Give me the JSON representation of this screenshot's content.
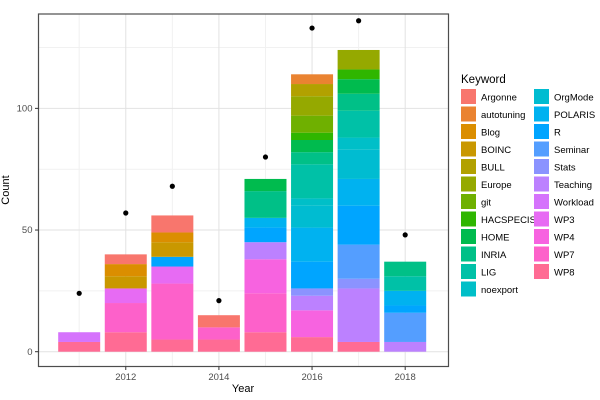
{
  "chart_data": {
    "type": "bar",
    "stacked": true,
    "title": "",
    "xlabel": "Year",
    "ylabel": "Count",
    "legend_title": "Keyword",
    "legend_position": "right",
    "grid": true,
    "background": "#FFFFFF",
    "panel_border_color": "#4D4D4D",
    "major_grid_color": "#E2E2E2",
    "minor_grid_color": "#F1F1F1",
    "tick_label_color": "#4D4D4D",
    "point_color": "#000000",
    "x_major_ticks": [
      "2012",
      "2014",
      "2016",
      "2018"
    ],
    "x_minor_years": [
      2011,
      2013,
      2015,
      2017
    ],
    "y_major_ticks": [
      0,
      50,
      100
    ],
    "y_minor_ticks": [
      25,
      75,
      125
    ],
    "ylim": [
      0,
      139
    ],
    "keywords": [
      {
        "name": "Argonne",
        "color": "#F8766D"
      },
      {
        "name": "autotuning",
        "color": "#EA8331"
      },
      {
        "name": "Blog",
        "color": "#DB8E00"
      },
      {
        "name": "BOINC",
        "color": "#C99800"
      },
      {
        "name": "BULL",
        "color": "#B2A100"
      },
      {
        "name": "Europe",
        "color": "#95A900"
      },
      {
        "name": "git",
        "color": "#6FB000"
      },
      {
        "name": "HACSPECIS",
        "color": "#2FB600"
      },
      {
        "name": "HOME",
        "color": "#00BB4E"
      },
      {
        "name": "INRIA",
        "color": "#00C087"
      },
      {
        "name": "LIG",
        "color": "#00C1A7"
      },
      {
        "name": "noexport",
        "color": "#00BFC8"
      },
      {
        "name": "OrgMode",
        "color": "#00BCD1"
      },
      {
        "name": "POLARIS",
        "color": "#00B2F0"
      },
      {
        "name": "R",
        "color": "#00A5FF"
      },
      {
        "name": "Seminar",
        "color": "#549EFF"
      },
      {
        "name": "Stats",
        "color": "#8B93FF"
      },
      {
        "name": "Teaching",
        "color": "#BC81FF"
      },
      {
        "name": "Workload",
        "color": "#D573FC"
      },
      {
        "name": "WP3",
        "color": "#E76BF3"
      },
      {
        "name": "WP4",
        "color": "#F763E0"
      },
      {
        "name": "WP7",
        "color": "#FD61CA"
      },
      {
        "name": "WP8",
        "color": "#FF6B94"
      }
    ],
    "bars": [
      {
        "year": "2011",
        "total": 8,
        "segments": [
          {
            "keyword": "WP8",
            "value": 4
          },
          {
            "keyword": "Workload",
            "value": 4
          }
        ]
      },
      {
        "year": "2012",
        "total": 40,
        "segments": [
          {
            "keyword": "WP8",
            "value": 8
          },
          {
            "keyword": "WP7",
            "value": 12
          },
          {
            "keyword": "WP3",
            "value": 6
          },
          {
            "keyword": "BOINC",
            "value": 5
          },
          {
            "keyword": "Blog",
            "value": 5
          },
          {
            "keyword": "Argonne",
            "value": 4
          }
        ]
      },
      {
        "year": "2013",
        "total": 56,
        "segments": [
          {
            "keyword": "WP8",
            "value": 5
          },
          {
            "keyword": "WP7",
            "value": 23
          },
          {
            "keyword": "WP3",
            "value": 7
          },
          {
            "keyword": "R",
            "value": 4
          },
          {
            "keyword": "BOINC",
            "value": 6
          },
          {
            "keyword": "Blog",
            "value": 4
          },
          {
            "keyword": "Argonne",
            "value": 7
          }
        ]
      },
      {
        "year": "2014",
        "total": 15,
        "segments": [
          {
            "keyword": "WP8",
            "value": 5
          },
          {
            "keyword": "WP7",
            "value": 5
          },
          {
            "keyword": "Argonne",
            "value": 5
          }
        ]
      },
      {
        "year": "2015",
        "total": 71,
        "segments": [
          {
            "keyword": "WP8",
            "value": 8
          },
          {
            "keyword": "WP7",
            "value": 16
          },
          {
            "keyword": "WP4",
            "value": 14
          },
          {
            "keyword": "Teaching",
            "value": 7
          },
          {
            "keyword": "R",
            "value": 6
          },
          {
            "keyword": "POLARIS",
            "value": 4
          },
          {
            "keyword": "INRIA",
            "value": 11
          },
          {
            "keyword": "HOME",
            "value": 5
          }
        ]
      },
      {
        "year": "2016",
        "total": 114,
        "segments": [
          {
            "keyword": "WP8",
            "value": 6
          },
          {
            "keyword": "WP4",
            "value": 11
          },
          {
            "keyword": "Teaching",
            "value": 6
          },
          {
            "keyword": "Stats",
            "value": 3
          },
          {
            "keyword": "R",
            "value": 11
          },
          {
            "keyword": "POLARIS",
            "value": 14
          },
          {
            "keyword": "OrgMode",
            "value": 9
          },
          {
            "keyword": "noexport",
            "value": 3
          },
          {
            "keyword": "LIG",
            "value": 14
          },
          {
            "keyword": "INRIA",
            "value": 5
          },
          {
            "keyword": "HOME",
            "value": 5
          },
          {
            "keyword": "HACSPECIS",
            "value": 3
          },
          {
            "keyword": "git",
            "value": 7
          },
          {
            "keyword": "Europe",
            "value": 8
          },
          {
            "keyword": "BULL",
            "value": 5
          },
          {
            "keyword": "autotuning",
            "value": 4
          }
        ]
      },
      {
        "year": "2017",
        "total": 124,
        "segments": [
          {
            "keyword": "WP8",
            "value": 4
          },
          {
            "keyword": "Teaching",
            "value": 22
          },
          {
            "keyword": "Stats",
            "value": 4
          },
          {
            "keyword": "Seminar",
            "value": 14
          },
          {
            "keyword": "R",
            "value": 16
          },
          {
            "keyword": "POLARIS",
            "value": 11
          },
          {
            "keyword": "OrgMode",
            "value": 12
          },
          {
            "keyword": "noexport",
            "value": 5
          },
          {
            "keyword": "LIG",
            "value": 11
          },
          {
            "keyword": "INRIA",
            "value": 7
          },
          {
            "keyword": "HOME",
            "value": 6
          },
          {
            "keyword": "HACSPECIS",
            "value": 4
          },
          {
            "keyword": "Europe",
            "value": 8
          }
        ]
      },
      {
        "year": "2018",
        "total": 37,
        "segments": [
          {
            "keyword": "Teaching",
            "value": 4
          },
          {
            "keyword": "Seminar",
            "value": 12
          },
          {
            "keyword": "R",
            "value": 3
          },
          {
            "keyword": "POLARIS",
            "value": 6
          },
          {
            "keyword": "LIG",
            "value": 6
          },
          {
            "keyword": "INRIA",
            "value": 6
          }
        ]
      }
    ],
    "points": [
      {
        "year": "2011",
        "value": 24
      },
      {
        "year": "2012",
        "value": 57
      },
      {
        "year": "2013",
        "value": 68
      },
      {
        "year": "2014",
        "value": 21
      },
      {
        "year": "2015",
        "value": 80
      },
      {
        "year": "2016",
        "value": 133
      },
      {
        "year": "2017",
        "value": 136
      },
      {
        "year": "2018",
        "value": 48
      }
    ]
  }
}
